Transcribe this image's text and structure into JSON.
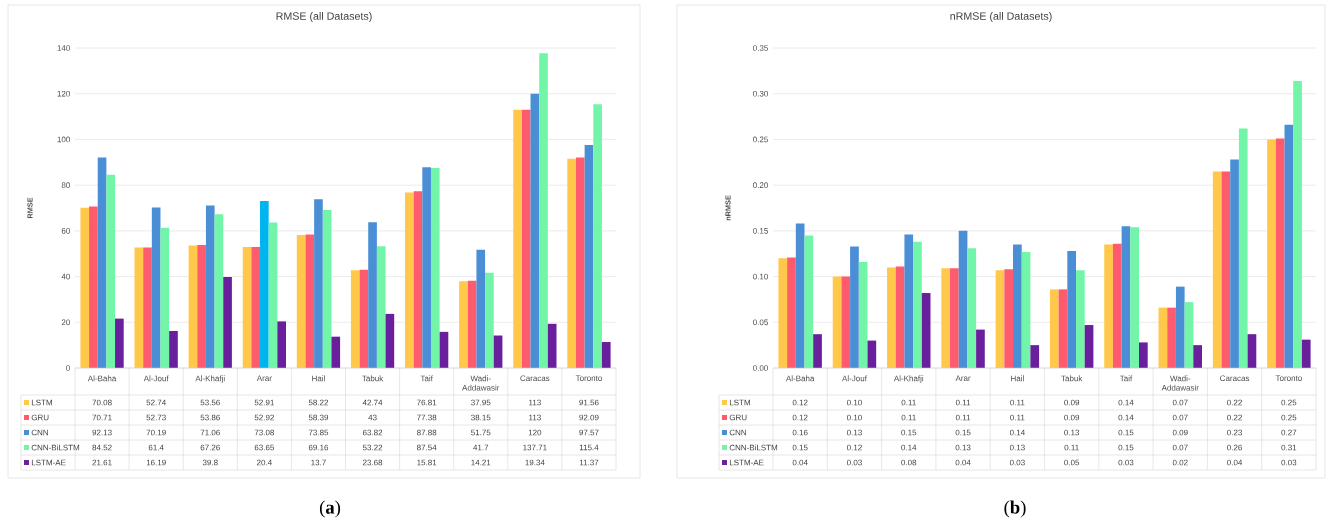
{
  "chart_data": [
    {
      "type": "bar",
      "title": "RMSE (all Datasets)",
      "ylabel": "RMSE",
      "categories": [
        "Al-Baha",
        "Al-Jouf",
        "Al-Khafji",
        "Arar",
        "Hail",
        "Tabuk",
        "Taif",
        "Wadi-Addawasir",
        "Caracas",
        "Toronto"
      ],
      "series": [
        {
          "name": "LSTM",
          "color": "#ffc84a",
          "values": [
            70.08,
            52.74,
            53.56,
            52.91,
            58.22,
            42.74,
            76.81,
            37.95,
            113,
            91.56
          ]
        },
        {
          "name": "GRU",
          "color": "#ff5b6e",
          "values": [
            70.71,
            52.73,
            53.86,
            52.92,
            58.39,
            43,
            77.38,
            38.15,
            113,
            92.09
          ]
        },
        {
          "name": "CNN",
          "color": "#4a8ed6",
          "colors": [
            "#4a8ed6",
            "#4a8ed6",
            "#4a8ed6",
            "#00b4f0",
            "#4a8ed6",
            "#4a8ed6",
            "#4a8ed6",
            "#4a8ed6",
            "#4a8ed6",
            "#4a8ed6"
          ],
          "values": [
            92.13,
            70.19,
            71.06,
            73.08,
            73.85,
            63.82,
            87.88,
            51.75,
            120,
            97.57
          ]
        },
        {
          "name": "CNN-BiLSTM",
          "color": "#72f5a8",
          "values": [
            84.52,
            61.4,
            67.26,
            63.65,
            69.16,
            53.22,
            87.54,
            41.7,
            137.71,
            115.4
          ]
        },
        {
          "name": "LSTM-AE",
          "color": "#6a1f9c",
          "values": [
            21.61,
            16.19,
            39.8,
            20.4,
            13.7,
            23.68,
            15.81,
            14.21,
            19.34,
            11.37
          ]
        }
      ],
      "ylim": [
        0,
        140
      ],
      "yticks": [
        0,
        20,
        40,
        60,
        80,
        100,
        120,
        140
      ],
      "grid": "y",
      "legend": "bottom",
      "data_labels": true,
      "annotations": [
        "(**a**)"
      ]
    },
    {
      "type": "bar",
      "title": "nRMSE (all Datasets)",
      "ylabel": "nRMSE",
      "categories": [
        "Al-Baha",
        "Al-Jouf",
        "Al-Khafji",
        "Arar",
        "Hail",
        "Tabuk",
        "Taif",
        "Wadi-Addawasir",
        "Caracas",
        "Toronto"
      ],
      "series": [
        {
          "name": "LSTM",
          "color": "#ffc84a",
          "values": [
            0.12,
            0.1,
            0.11,
            0.109,
            0.107,
            0.086,
            0.135,
            0.066,
            0.215,
            0.25
          ],
          "value_labels": [
            "0.12",
            "0.10",
            "0.11",
            "0.11",
            "0.11",
            "0.09",
            "0.14",
            "0.07",
            "0.22",
            "0.25"
          ]
        },
        {
          "name": "GRU",
          "color": "#ff5b6e",
          "values": [
            0.121,
            0.1,
            0.111,
            0.109,
            0.108,
            0.086,
            0.136,
            0.066,
            0.215,
            0.251
          ],
          "value_labels": [
            "0.12",
            "0.10",
            "0.11",
            "0.11",
            "0.11",
            "0.09",
            "0.14",
            "0.07",
            "0.22",
            "0.25"
          ]
        },
        {
          "name": "CNN",
          "color": "#4a8ed6",
          "values": [
            0.158,
            0.133,
            0.146,
            0.15,
            0.135,
            0.128,
            0.155,
            0.089,
            0.228,
            0.266
          ],
          "value_labels": [
            "0.16",
            "0.13",
            "0.15",
            "0.15",
            "0.14",
            "0.13",
            "0.15",
            "0.09",
            "0.23",
            "0.27"
          ]
        },
        {
          "name": "CNN-BiLSTM",
          "color": "#72f5a8",
          "values": [
            0.145,
            0.116,
            0.138,
            0.131,
            0.127,
            0.107,
            0.154,
            0.072,
            0.262,
            0.314
          ],
          "value_labels": [
            "0.15",
            "0.12",
            "0.14",
            "0.13",
            "0.13",
            "0.11",
            "0.15",
            "0.07",
            "0.26",
            "0.31"
          ]
        },
        {
          "name": "LSTM-AE",
          "color": "#6a1f9c",
          "values": [
            0.037,
            0.03,
            0.082,
            0.042,
            0.025,
            0.047,
            0.028,
            0.025,
            0.037,
            0.031
          ],
          "value_labels": [
            "0.04",
            "0.03",
            "0.08",
            "0.04",
            "0.03",
            "0.05",
            "0.03",
            "0.02",
            "0.04",
            "0.03"
          ]
        }
      ],
      "ylim": [
        0,
        0.35
      ],
      "yticks": [
        {
          "value": 0,
          "label": "0.00"
        },
        {
          "value": 0.05,
          "label": "0.05"
        },
        {
          "value": 0.1,
          "label": "0.10"
        },
        {
          "value": 0.15,
          "label": "0.15"
        },
        {
          "value": 0.2,
          "label": "0.20"
        },
        {
          "value": 0.25,
          "label": "0.25"
        },
        {
          "value": 0.3,
          "label": "0.30"
        },
        {
          "value": 0.35,
          "label": "0.35"
        }
      ],
      "grid": "y",
      "legend": "bottom",
      "annotations": [
        "(**b**)"
      ]
    }
  ]
}
